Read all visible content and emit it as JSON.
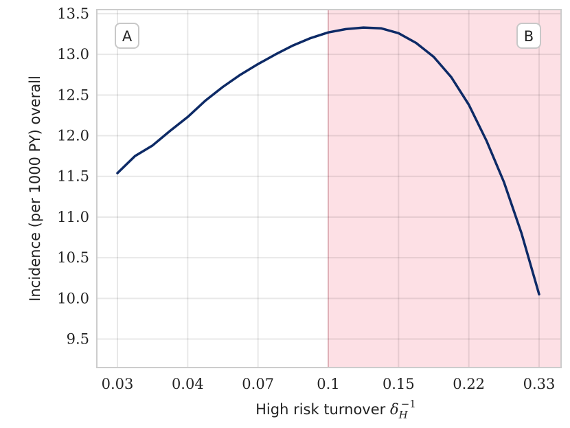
{
  "chart_data": {
    "type": "line",
    "xlabel": "High risk turnover",
    "xlabel_symbol": "δ",
    "xlabel_sub": "H",
    "xlabel_sup": "−1",
    "ylabel": "Incidence (per 1000 PY) overall",
    "xticks": [
      "0.03",
      "0.04",
      "0.07",
      "0.1",
      "0.15",
      "0.22",
      "0.33"
    ],
    "yticks": [
      "9.5",
      "10.0",
      "10.5",
      "11.0",
      "11.5",
      "12.0",
      "12.5",
      "13.0",
      "13.5"
    ],
    "ylim": [
      9.15,
      13.55
    ],
    "grid": true,
    "regions": [
      {
        "label": "A",
        "x_start": "0.03",
        "x_end": "0.1",
        "color": "#ffffff"
      },
      {
        "label": "B",
        "x_start": "0.1",
        "x_end": "0.33",
        "color": "#fde0e5"
      }
    ],
    "line_color": "#0d2a66",
    "series": [
      {
        "x_ticks_index": [
          0,
          0.25,
          0.5,
          0.75,
          1,
          1.25,
          1.5,
          1.75,
          2,
          2.25,
          2.5,
          2.75,
          3,
          3.25,
          3.5,
          3.75,
          4,
          4.25,
          4.5,
          4.75,
          5,
          5.25,
          5.5,
          5.75,
          6
        ],
        "values": [
          11.54,
          11.75,
          11.88,
          12.06,
          12.23,
          12.43,
          12.6,
          12.75,
          12.88,
          13.0,
          13.11,
          13.2,
          13.27,
          13.31,
          13.33,
          13.32,
          13.26,
          13.14,
          12.97,
          12.72,
          12.38,
          11.94,
          11.43,
          10.8,
          10.05
        ]
      }
    ]
  }
}
